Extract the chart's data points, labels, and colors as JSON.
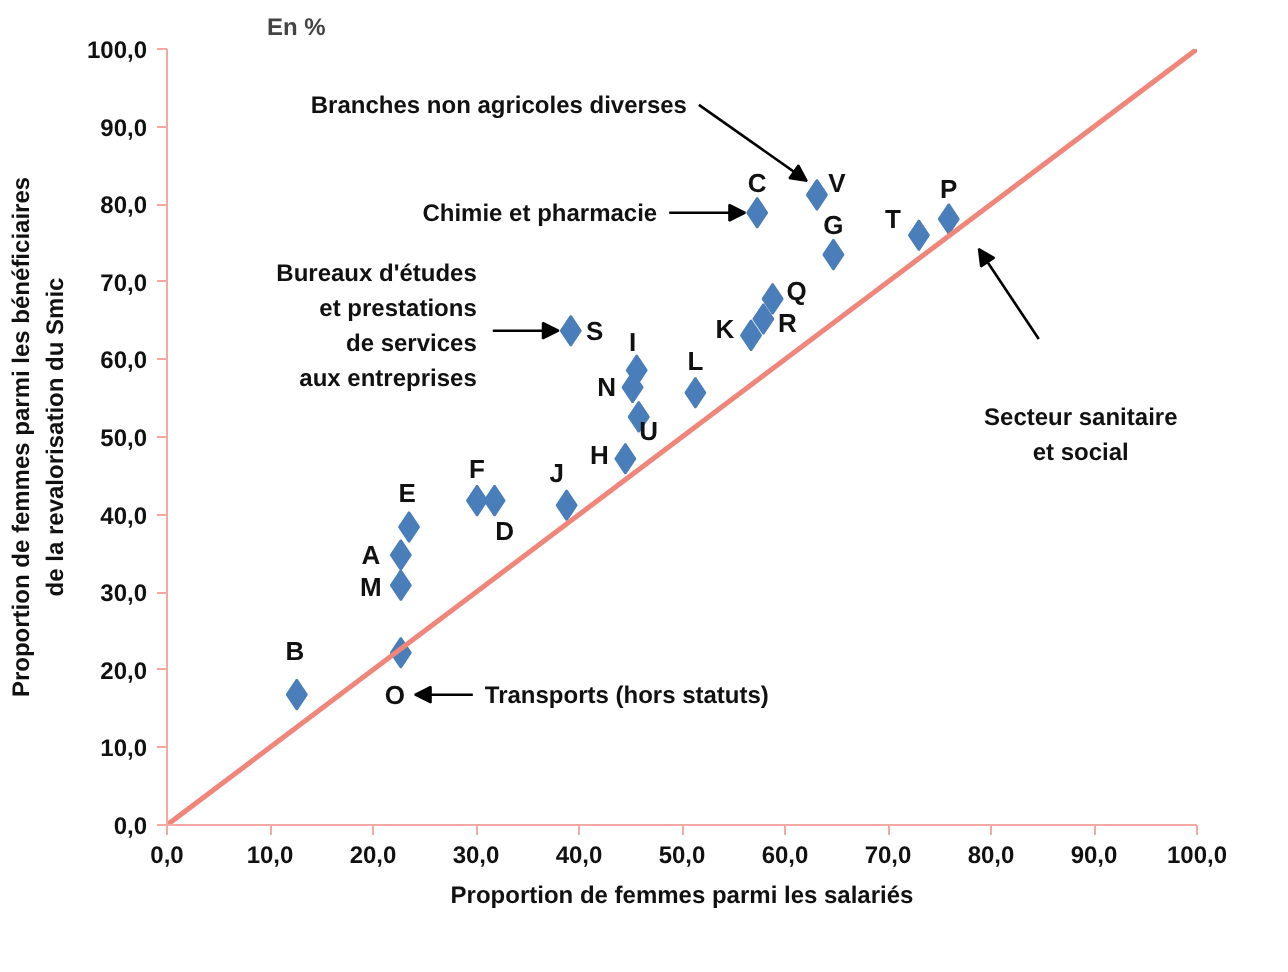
{
  "chart_data": {
    "type": "scatter",
    "title": "En %",
    "xlabel": "Proportion de femmes parmi les salariés",
    "ylabel": "Proportion de femmes parmi les bénéficiaires\nde la revalorisation du Smic",
    "xlim": [
      0,
      100
    ],
    "ylim": [
      0,
      100
    ],
    "xticks": [
      {
        "value": 0,
        "label": "0,0"
      },
      {
        "value": 10,
        "label": "10,0"
      },
      {
        "value": 20,
        "label": "20,0"
      },
      {
        "value": 30,
        "label": "30,0"
      },
      {
        "value": 40,
        "label": "40,0"
      },
      {
        "value": 50,
        "label": "50,0"
      },
      {
        "value": 60,
        "label": "60,0"
      },
      {
        "value": 70,
        "label": "70,0"
      },
      {
        "value": 80,
        "label": "80,0"
      },
      {
        "value": 90,
        "label": "90,0"
      },
      {
        "value": 100,
        "label": "100,0"
      }
    ],
    "yticks": [
      {
        "value": 0,
        "label": "0,0"
      },
      {
        "value": 10,
        "label": "10,0"
      },
      {
        "value": 20,
        "label": "20,0"
      },
      {
        "value": 30,
        "label": "30,0"
      },
      {
        "value": 40,
        "label": "40,0"
      },
      {
        "value": 50,
        "label": "50,0"
      },
      {
        "value": 60,
        "label": "60,0"
      },
      {
        "value": 70,
        "label": "70,0"
      },
      {
        "value": 80,
        "label": "80,0"
      },
      {
        "value": 90,
        "label": "90,0"
      },
      {
        "value": 100,
        "label": "100,0"
      }
    ],
    "grid": false,
    "series": [
      {
        "marker": "diamond",
        "color": "#4a7ebb",
        "x": [
          22.7,
          12.6,
          57.3,
          31.8,
          23.5,
          30.1,
          64.7,
          44.5,
          45.6,
          38.8,
          56.7,
          51.3,
          22.7,
          45.2,
          22.7,
          75.9,
          58.8,
          57.9,
          39.2,
          73.0,
          45.8,
          63.1
        ],
        "values": [
          34.8,
          16.8,
          78.9,
          41.8,
          38.4,
          41.8,
          73.5,
          47.2,
          58.6,
          41.2,
          63.1,
          55.7,
          30.9,
          56.4,
          22.2,
          78.1,
          67.8,
          65.2,
          63.7,
          76.0,
          52.6,
          81.2
        ]
      },
      {
        "type": "line",
        "color": "#f0857a",
        "x": [
          0,
          100
        ],
        "values": [
          0,
          100
        ]
      }
    ],
    "annotations": [
      {
        "text": "A",
        "x": 22.7,
        "y": 34.8
      },
      {
        "text": "B",
        "x": 12.6,
        "y": 16.8
      },
      {
        "text": "C",
        "x": 57.3,
        "y": 78.9
      },
      {
        "text": "D",
        "x": 31.8,
        "y": 41.8
      },
      {
        "text": "E",
        "x": 23.5,
        "y": 38.4
      },
      {
        "text": "F",
        "x": 30.1,
        "y": 41.8
      },
      {
        "text": "G",
        "x": 64.7,
        "y": 73.5
      },
      {
        "text": "H",
        "x": 44.5,
        "y": 47.2
      },
      {
        "text": "I",
        "x": 45.6,
        "y": 58.6
      },
      {
        "text": "J",
        "x": 38.8,
        "y": 41.2
      },
      {
        "text": "K",
        "x": 56.7,
        "y": 63.1
      },
      {
        "text": "L",
        "x": 51.3,
        "y": 55.7
      },
      {
        "text": "M",
        "x": 22.7,
        "y": 30.9
      },
      {
        "text": "N",
        "x": 45.2,
        "y": 56.4
      },
      {
        "text": "O",
        "x": 22.7,
        "y": 22.2
      },
      {
        "text": "P",
        "x": 75.9,
        "y": 78.1
      },
      {
        "text": "Q",
        "x": 58.8,
        "y": 67.8
      },
      {
        "text": "R",
        "x": 57.9,
        "y": 65.2
      },
      {
        "text": "S",
        "x": 39.2,
        "y": 63.7
      },
      {
        "text": "T",
        "x": 73.0,
        "y": 76.0
      },
      {
        "text": "U",
        "x": 45.8,
        "y": 52.6
      },
      {
        "text": "V",
        "x": 63.1,
        "y": 81.2
      },
      {
        "text": "Branches non agricoles diverses",
        "x": 63.1,
        "y": 81.2
      },
      {
        "text": "Chimie et pharmacie",
        "x": 57.3,
        "y": 78.9
      },
      {
        "text": "Bureaux d'études\net prestations\nde services\naux entreprises",
        "x": 39.2,
        "y": 63.7
      },
      "Transports (hors statuts)",
      "Secteur sanitaire\net social"
    ]
  }
}
